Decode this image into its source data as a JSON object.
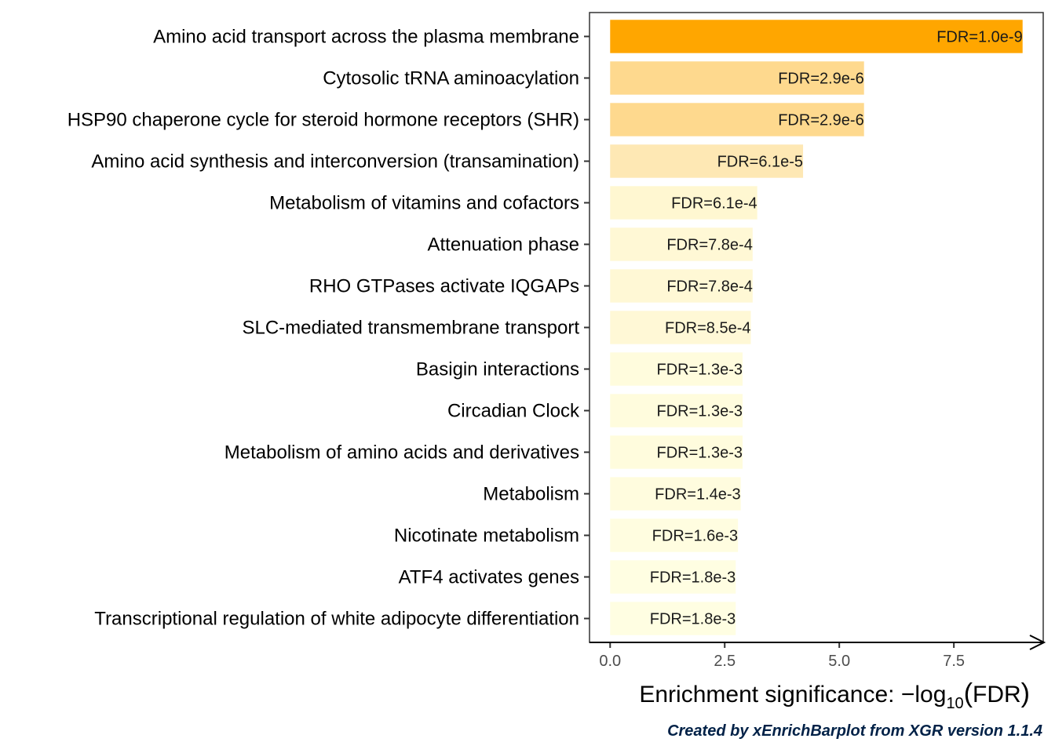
{
  "chart_data": {
    "type": "bar",
    "orientation": "horizontal",
    "categories": [
      "Amino acid transport across the plasma membrane",
      "Cytosolic tRNA aminoacylation",
      "HSP90 chaperone cycle for steroid hormone receptors (SHR)",
      "Amino acid synthesis and interconversion (transamination)",
      "Metabolism of vitamins and cofactors",
      "Attenuation phase",
      "RHO GTPases activate IQGAPs",
      "SLC-mediated transmembrane transport",
      "Basigin interactions",
      "Circadian Clock",
      "Metabolism of amino acids and derivatives",
      "Metabolism",
      "Nicotinate metabolism",
      "ATF4 activates genes",
      "Transcriptional regulation of white adipocyte differentiation"
    ],
    "values": [
      9.0,
      5.54,
      5.54,
      4.21,
      3.21,
      3.11,
      3.11,
      3.07,
      2.89,
      2.89,
      2.89,
      2.85,
      2.79,
      2.74,
      2.74
    ],
    "bar_labels": [
      "FDR=1.0e-9",
      "FDR=2.9e-6",
      "FDR=2.9e-6",
      "FDR=6.1e-5",
      "FDR=6.1e-4",
      "FDR=7.8e-4",
      "FDR=7.8e-4",
      "FDR=8.5e-4",
      "FDR=1.3e-3",
      "FDR=1.3e-3",
      "FDR=1.3e-3",
      "FDR=1.4e-3",
      "FDR=1.6e-3",
      "FDR=1.8e-3",
      "FDR=1.8e-3"
    ],
    "colors": [
      "#ffa600",
      "#fed98e",
      "#fed98e",
      "#fee8b4",
      "#fff7d1",
      "#fff8d5",
      "#fff8d5",
      "#fff8d6",
      "#fffcdd",
      "#fffcdd",
      "#fffcdd",
      "#fffcde",
      "#fffde0",
      "#fffee2",
      "#fffee2"
    ],
    "xticks": [
      0,
      2.5,
      5,
      7.5
    ],
    "xtick_labels": [
      "0.0",
      "2.5",
      "5.0",
      "7.5"
    ],
    "xlim": [
      -0.45,
      9.45
    ],
    "xlabel_prefix": "Enrichment significance: ",
    "xlabel_minus": "−",
    "xlabel_log": "log",
    "xlabel_sub": "10",
    "xlabel_open": "(",
    "xlabel_fdr": "FDR",
    "xlabel_close": ")",
    "grid": false,
    "caption": "Created by xEnrichBarplot from XGR version 1.1.4",
    "caption_color": "#002147"
  }
}
